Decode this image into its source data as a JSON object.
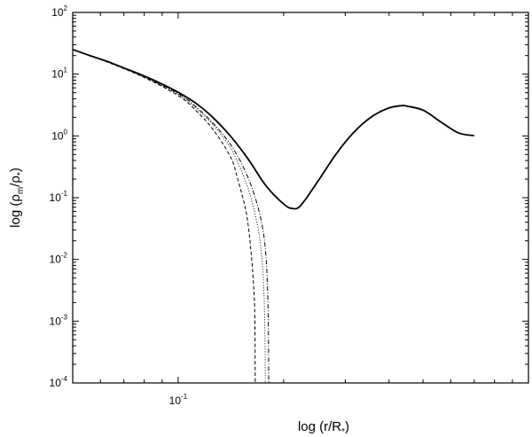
{
  "chart_data": {
    "type": "line",
    "title": "",
    "xlabel": {
      "prefix": "log (r/R",
      "sub": "*",
      "suffix": ")"
    },
    "ylabel": {
      "prefix": "log (",
      "rho1": "ρ",
      "sub1": "m",
      "slash": "/",
      "rho2": "ρ",
      "sub2": "*",
      "suffix": ")"
    },
    "x_scale": "log",
    "y_scale": "log",
    "xlim": [
      0.05,
      1.0
    ],
    "ylim": [
      0.0001,
      100
    ],
    "x_ticks": [
      {
        "value": 0.1,
        "base": "10",
        "exp": "-1"
      }
    ],
    "y_ticks": [
      {
        "value": 100,
        "base": "10",
        "exp": "2"
      },
      {
        "value": 10,
        "base": "10",
        "exp": "1"
      },
      {
        "value": 1,
        "base": "10",
        "exp": "0"
      },
      {
        "value": 0.1,
        "base": "10",
        "exp": "-1"
      },
      {
        "value": 0.01,
        "base": "10",
        "exp": "-2"
      },
      {
        "value": 0.001,
        "base": "10",
        "exp": "-3"
      },
      {
        "value": 0.0001,
        "base": "10",
        "exp": "-4"
      }
    ],
    "grid": false,
    "legend": "none",
    "series": [
      {
        "style": "solid",
        "points": [
          [
            0.05,
            25.1
          ],
          [
            0.0561,
            19.9
          ],
          [
            0.0631,
            15.9
          ],
          [
            0.0708,
            12.3
          ],
          [
            0.0794,
            9.5
          ],
          [
            0.0891,
            7.1
          ],
          [
            0.1,
            5.1
          ],
          [
            0.1122,
            3.4
          ],
          [
            0.1259,
            1.97
          ],
          [
            0.1413,
            0.98
          ],
          [
            0.1585,
            0.42
          ],
          [
            0.1778,
            0.158
          ],
          [
            0.1995,
            0.08
          ],
          [
            0.2115,
            0.067
          ],
          [
            0.2239,
            0.075
          ],
          [
            0.2512,
            0.188
          ],
          [
            0.2818,
            0.5
          ],
          [
            0.3162,
            1.12
          ],
          [
            0.3548,
            2.0
          ],
          [
            0.3981,
            2.82
          ],
          [
            0.4365,
            3.1
          ],
          [
            0.4467,
            3.06
          ],
          [
            0.5012,
            2.6
          ],
          [
            0.5623,
            1.68
          ],
          [
            0.631,
            1.12
          ],
          [
            0.7,
            1.01
          ]
        ]
      },
      {
        "style": "dashed",
        "points": [
          [
            0.05,
            25.1
          ],
          [
            0.0631,
            15.5
          ],
          [
            0.0794,
            9.0
          ],
          [
            0.1,
            4.5
          ],
          [
            0.1122,
            2.6
          ],
          [
            0.1259,
            1.26
          ],
          [
            0.1413,
            0.45
          ],
          [
            0.1479,
            0.2
          ],
          [
            0.1549,
            0.075
          ],
          [
            0.1585,
            0.0355
          ],
          [
            0.1622,
            0.01
          ],
          [
            0.1644,
            0.0033
          ],
          [
            0.1655,
            0.00126
          ],
          [
            0.166,
            0.0001
          ]
        ]
      },
      {
        "style": "dotted",
        "points": [
          [
            0.05,
            25.1
          ],
          [
            0.0631,
            15.7
          ],
          [
            0.0794,
            9.2
          ],
          [
            0.1,
            4.7
          ],
          [
            0.1122,
            2.85
          ],
          [
            0.1259,
            1.5
          ],
          [
            0.1413,
            0.63
          ],
          [
            0.1549,
            0.2
          ],
          [
            0.1622,
            0.089
          ],
          [
            0.1698,
            0.028
          ],
          [
            0.1738,
            0.0089
          ],
          [
            0.1758,
            0.0028
          ],
          [
            0.177,
            0.0005
          ],
          [
            0.1774,
            0.0001
          ]
        ]
      },
      {
        "style": "dashdot",
        "points": [
          [
            0.05,
            25.1
          ],
          [
            0.0631,
            15.8
          ],
          [
            0.0794,
            9.3
          ],
          [
            0.1,
            4.85
          ],
          [
            0.1122,
            3.0
          ],
          [
            0.1259,
            1.6
          ],
          [
            0.1413,
            0.72
          ],
          [
            0.1549,
            0.28
          ],
          [
            0.166,
            0.1
          ],
          [
            0.1738,
            0.035
          ],
          [
            0.1778,
            0.0126
          ],
          [
            0.1799,
            0.0035
          ],
          [
            0.181,
            0.0006
          ],
          [
            0.1813,
            0.0001
          ]
        ]
      }
    ]
  }
}
